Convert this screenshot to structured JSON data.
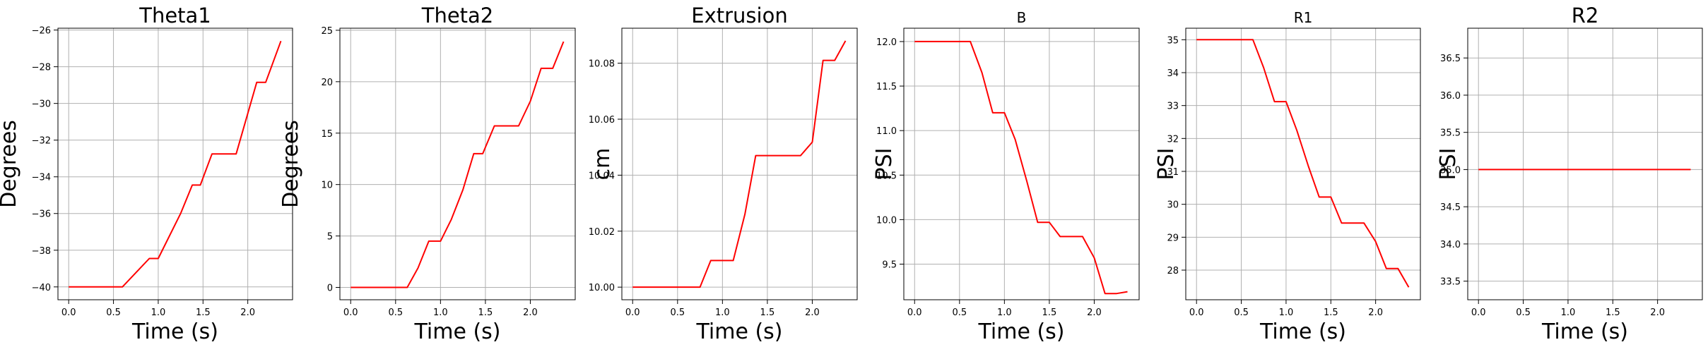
{
  "colors": {
    "line": "#ff0000"
  },
  "chart_data": [
    {
      "type": "line",
      "grid": true,
      "title": "Theta1",
      "xlabel": "Time (s)",
      "ylabel": "Degrees",
      "xlim": [
        -0.12,
        2.5
      ],
      "ylim": [
        -40.7,
        -25.9
      ],
      "xticks": [
        0.0,
        0.5,
        1.0,
        1.5,
        2.0
      ],
      "xtick_labels": [
        "0.0",
        "0.5",
        "1.0",
        "1.5",
        "2.0"
      ],
      "yticks": [
        -40,
        -38,
        -36,
        -34,
        -32,
        -30,
        -28,
        -26
      ],
      "ytick_labels": [
        "−40",
        "−38",
        "−36",
        "−34",
        "−32",
        "−30",
        "−28",
        "−26"
      ],
      "x": [
        0.0,
        0.6,
        0.9,
        1.0,
        1.25,
        1.38,
        1.47,
        1.6,
        1.87,
        2.1,
        2.2,
        2.37
      ],
      "y": [
        -40,
        -40,
        -38.45,
        -38.45,
        -36.0,
        -34.45,
        -34.45,
        -32.75,
        -32.75,
        -28.85,
        -28.85,
        -26.6
      ]
    },
    {
      "type": "line",
      "grid": true,
      "title": "Theta2",
      "xlabel": "Time (s)",
      "ylabel": "Degrees",
      "xlim": [
        -0.12,
        2.5
      ],
      "ylim": [
        -1.2,
        25.2
      ],
      "xticks": [
        0.0,
        0.5,
        1.0,
        1.5,
        2.0
      ],
      "xtick_labels": [
        "0.0",
        "0.5",
        "1.0",
        "1.5",
        "2.0"
      ],
      "yticks": [
        0,
        5,
        10,
        15,
        20,
        25
      ],
      "ytick_labels": [
        "0",
        "5",
        "10",
        "15",
        "20",
        "25"
      ],
      "x": [
        0.0,
        0.63,
        0.75,
        0.87,
        1.0,
        1.12,
        1.25,
        1.37,
        1.47,
        1.6,
        1.87,
        2.0,
        2.12,
        2.25,
        2.37
      ],
      "y": [
        0,
        0,
        1.9,
        4.5,
        4.5,
        6.6,
        9.5,
        13.0,
        13.0,
        15.7,
        15.7,
        18.1,
        21.3,
        21.3,
        23.9
      ]
    },
    {
      "type": "line",
      "grid": true,
      "title": "Extrusion",
      "xlabel": "Time (s)",
      "ylabel": "cm",
      "xlim": [
        -0.12,
        2.5
      ],
      "ylim": [
        9.9955,
        10.0925
      ],
      "xticks": [
        0.0,
        0.5,
        1.0,
        1.5,
        2.0
      ],
      "xtick_labels": [
        "0.0",
        "0.5",
        "1.0",
        "1.5",
        "2.0"
      ],
      "yticks": [
        10.0,
        10.02,
        10.04,
        10.06,
        10.08
      ],
      "ytick_labels": [
        "10.00",
        "10.02",
        "10.04",
        "10.06",
        "10.08"
      ],
      "x": [
        0.0,
        0.75,
        0.87,
        1.12,
        1.25,
        1.37,
        1.5,
        1.87,
        2.0,
        2.12,
        2.25,
        2.37
      ],
      "y": [
        10.0,
        10.0,
        10.0095,
        10.0095,
        10.026,
        10.047,
        10.047,
        10.047,
        10.0518,
        10.081,
        10.081,
        10.088
      ]
    },
    {
      "type": "line",
      "grid": true,
      "title": "B",
      "xlabel": "Time (s)",
      "ylabel": "PSI",
      "xlim": [
        -0.12,
        2.5
      ],
      "ylim": [
        9.1,
        12.15
      ],
      "xticks": [
        0.0,
        0.5,
        1.0,
        1.5,
        2.0
      ],
      "xtick_labels": [
        "0.0",
        "0.5",
        "1.0",
        "1.5",
        "2.0"
      ],
      "yticks": [
        9.5,
        10.0,
        10.5,
        11.0,
        11.5,
        12.0
      ],
      "ytick_labels": [
        "9.5",
        "10.0",
        "10.5",
        "11.0",
        "11.5",
        "12.0"
      ],
      "x": [
        0.0,
        0.62,
        0.75,
        0.87,
        1.0,
        1.12,
        1.25,
        1.37,
        1.5,
        1.62,
        1.87,
        2.0,
        2.12,
        2.25,
        2.37
      ],
      "y": [
        12.0,
        12.0,
        11.65,
        11.2,
        11.2,
        10.9,
        10.43,
        9.97,
        9.97,
        9.81,
        9.81,
        9.57,
        9.17,
        9.17,
        9.19
      ]
    },
    {
      "type": "line",
      "grid": true,
      "title": "R1",
      "xlabel": "Time (s)",
      "ylabel": "PSI",
      "xlim": [
        -0.12,
        2.5
      ],
      "ylim": [
        27.1,
        35.35
      ],
      "xticks": [
        0.0,
        0.5,
        1.0,
        1.5,
        2.0
      ],
      "xtick_labels": [
        "0.0",
        "0.5",
        "1.0",
        "1.5",
        "2.0"
      ],
      "yticks": [
        28,
        29,
        30,
        31,
        32,
        33,
        34,
        35
      ],
      "ytick_labels": [
        "28",
        "29",
        "30",
        "31",
        "32",
        "33",
        "34",
        "35"
      ],
      "x": [
        0.0,
        0.63,
        0.75,
        0.87,
        1.0,
        1.12,
        1.25,
        1.37,
        1.5,
        1.62,
        1.87,
        2.0,
        2.12,
        2.25,
        2.37
      ],
      "y": [
        35.0,
        35.0,
        34.15,
        33.12,
        33.12,
        32.25,
        31.15,
        30.22,
        30.22,
        29.43,
        29.43,
        28.87,
        28.05,
        28.05,
        27.48
      ]
    },
    {
      "type": "line",
      "grid": true,
      "title": "R2",
      "xlabel": "Time (s)",
      "ylabel": "PSI",
      "xlim": [
        -0.12,
        2.5
      ],
      "ylim": [
        33.25,
        36.9
      ],
      "xticks": [
        0.0,
        0.5,
        1.0,
        1.5,
        2.0
      ],
      "xtick_labels": [
        "0.0",
        "0.5",
        "1.0",
        "1.5",
        "2.0"
      ],
      "yticks": [
        33.5,
        34.0,
        34.5,
        35.0,
        35.5,
        36.0,
        36.5
      ],
      "ytick_labels": [
        "33.5",
        "34.0",
        "34.5",
        "35.0",
        "35.5",
        "36.0",
        "36.5"
      ],
      "x": [
        0.0,
        2.37
      ],
      "y": [
        35.0,
        35.0
      ]
    }
  ]
}
